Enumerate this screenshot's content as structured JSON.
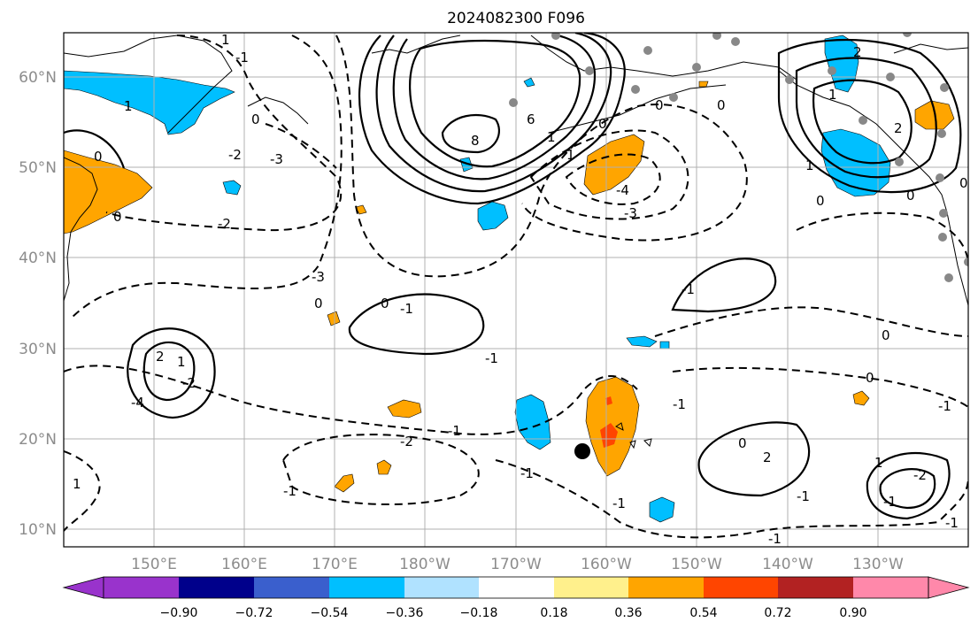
{
  "title": "2024082300 F096",
  "map": {
    "lat_ticks": [
      "60°N",
      "50°N",
      "40°N",
      "30°N",
      "20°N",
      "10°N"
    ],
    "lon_ticks": [
      "150°E",
      "160°E",
      "170°E",
      "180°W",
      "170°W",
      "160°W",
      "150°W",
      "140°W",
      "130°W"
    ],
    "contour_labels": [
      "1",
      "1",
      "-2",
      "-3",
      "-2",
      "0",
      "-1",
      "-3",
      "-4",
      "6",
      "8",
      "0",
      "1",
      "-3",
      "-4",
      "-2",
      "-1",
      "-2",
      "-1",
      "0",
      "2",
      "0",
      "-1",
      "1",
      "0",
      "-2",
      "-1",
      "-1",
      "0",
      "1",
      "2",
      "0",
      "-1",
      "0",
      "1",
      "0",
      "-1",
      "0",
      "0",
      "0",
      "-1",
      "1",
      "-1",
      "0",
      "-1",
      "1",
      "2",
      "-1",
      "-1",
      "-1",
      "2",
      "1",
      "0"
    ],
    "colors": {
      "blue": "#00bfff",
      "orange": "#ffa500",
      "red": "#ff4500",
      "station_grey": "#888888",
      "grid": "#b0b0b0"
    }
  },
  "colorbar": {
    "tick_labels": [
      "−0.90",
      "−0.72",
      "−0.54",
      "−0.36",
      "−0.18",
      "0.18",
      "0.36",
      "0.54",
      "0.72",
      "0.90"
    ],
    "bins": [
      {
        "color": "#9933cc"
      },
      {
        "color": "#00008b"
      },
      {
        "color": "#3a5fcd"
      },
      {
        "color": "#00bfff"
      },
      {
        "color": "#b0e2ff"
      },
      {
        "color": "#ffffff"
      },
      {
        "color": "#fff08c"
      },
      {
        "color": "#ffa500"
      },
      {
        "color": "#ff4500"
      },
      {
        "color": "#b22222"
      },
      {
        "color": "#ff88aa"
      }
    ]
  }
}
